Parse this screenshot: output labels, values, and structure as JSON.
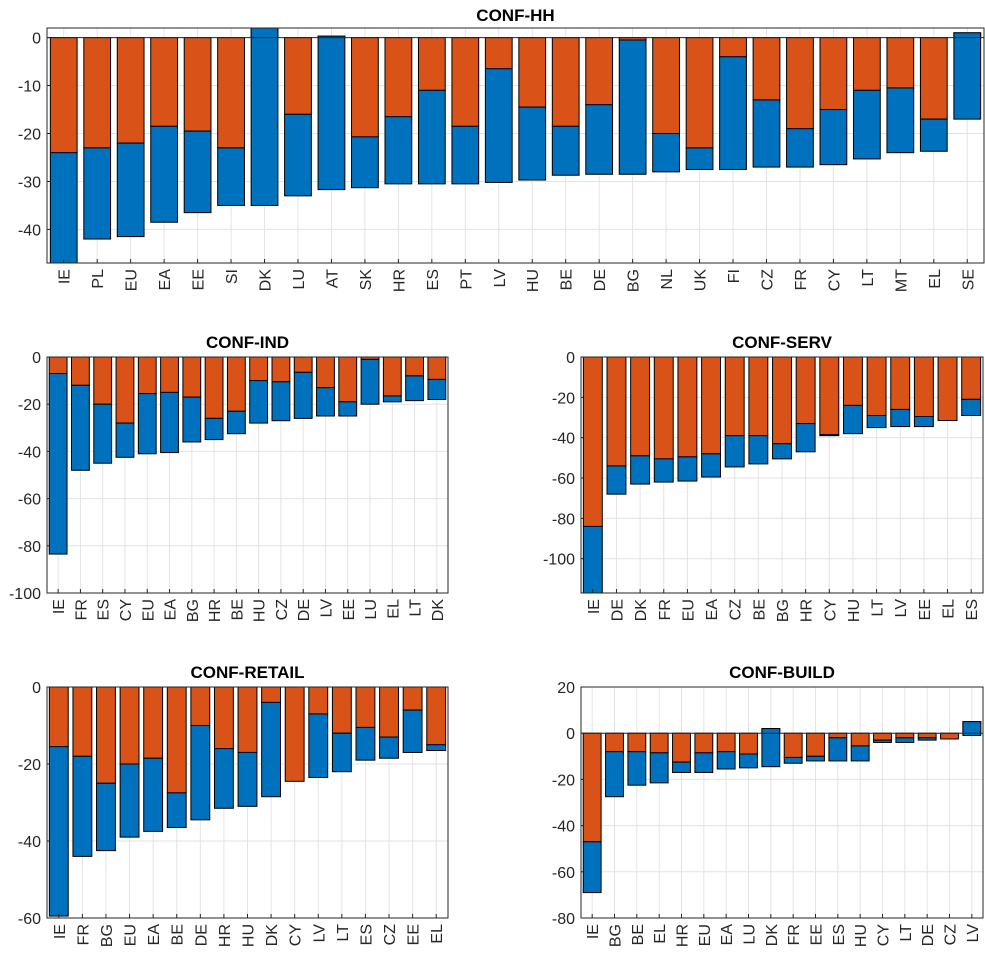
{
  "chart_data": [
    {
      "type": "bar",
      "stacked": true,
      "title": "CONF-HH",
      "grid": true,
      "ylim": [
        -47,
        2
      ],
      "yticks": [
        0,
        -10,
        -20,
        -30,
        -40
      ],
      "categories": [
        "IE",
        "PL",
        "EU",
        "EA",
        "EE",
        "SI",
        "DK",
        "LU",
        "AT",
        "SK",
        "HR",
        "ES",
        "PT",
        "LV",
        "HU",
        "BE",
        "DE",
        "BG",
        "NL",
        "UK",
        "FI",
        "CZ",
        "FR",
        "CY",
        "LT",
        "MT",
        "EL",
        "SE"
      ],
      "series": [
        {
          "color": "#d95319",
          "values": [
            -24,
            -23,
            -22,
            -18.5,
            -19.5,
            -23,
            2.5,
            -16,
            0.3,
            -20.7,
            -16.5,
            -11,
            -18.5,
            -6.5,
            -14.5,
            -18.5,
            -14,
            -0.5,
            -20,
            -23,
            -4,
            -13,
            -19,
            -15,
            -11,
            -10.5,
            -17,
            1
          ]
        },
        {
          "color": "#0072bd",
          "values": [
            -26,
            -19,
            -19.5,
            -20,
            -17,
            -12,
            -37.5,
            -17,
            -32,
            -10.6,
            -14,
            -19.5,
            -12,
            -23.7,
            -15.2,
            -10.2,
            -14.5,
            -28,
            -8,
            -4.5,
            -23.5,
            -14,
            -8,
            -11.5,
            -14.3,
            -13.5,
            -6.7,
            -18
          ]
        }
      ]
    },
    {
      "type": "bar",
      "stacked": true,
      "title": "CONF-IND",
      "grid": true,
      "ylim": [
        -100,
        0
      ],
      "yticks": [
        0,
        -20,
        -40,
        -60,
        -80,
        -100
      ],
      "categories": [
        "IE",
        "FR",
        "ES",
        "CY",
        "EU",
        "EA",
        "BG",
        "HR",
        "BE",
        "HU",
        "CZ",
        "DE",
        "LV",
        "EE",
        "LU",
        "EL",
        "LT",
        "DK"
      ],
      "series": [
        {
          "color": "#d95319",
          "values": [
            -7,
            -12,
            -20,
            -28,
            -15.5,
            -15,
            -17,
            -26,
            -23,
            -10,
            -10.5,
            -6.5,
            -13,
            -19,
            -1,
            -16.5,
            -8,
            -9.5
          ]
        },
        {
          "color": "#0072bd",
          "values": [
            -76.5,
            -36,
            -25,
            -14.5,
            -25.5,
            -25.5,
            -19,
            -9,
            -9.5,
            -18,
            -16.5,
            -19.5,
            -12,
            -6,
            -19,
            -2.5,
            -10.5,
            -8.5
          ]
        }
      ]
    },
    {
      "type": "bar",
      "stacked": true,
      "title": "CONF-SERV",
      "grid": true,
      "ylim": [
        -117,
        0
      ],
      "yticks": [
        0,
        -20,
        -40,
        -60,
        -80,
        -100
      ],
      "categories": [
        "IE",
        "DE",
        "DK",
        "FR",
        "EU",
        "EA",
        "CZ",
        "BE",
        "BG",
        "HR",
        "CY",
        "HU",
        "LT",
        "LV",
        "EE",
        "EL",
        "ES"
      ],
      "series": [
        {
          "color": "#d95319",
          "values": [
            -84,
            -54,
            -49,
            -50.5,
            -49.5,
            -48,
            -39,
            -39,
            -43,
            -33,
            -38.5,
            -24,
            -29,
            -26,
            -29.5,
            -31.5,
            -21
          ]
        },
        {
          "color": "#0072bd",
          "values": [
            -36,
            -14,
            -14,
            -11.5,
            -12,
            -11.5,
            -15.5,
            -14,
            -7.5,
            -14,
            -0.5,
            -14,
            -6,
            -8.5,
            -5,
            0,
            -8
          ]
        }
      ]
    },
    {
      "type": "bar",
      "stacked": true,
      "title": "CONF-RETAIL",
      "grid": true,
      "ylim": [
        -60,
        0
      ],
      "yticks": [
        0,
        -20,
        -40,
        -60
      ],
      "categories": [
        "IE",
        "FR",
        "BG",
        "EU",
        "EA",
        "BE",
        "DE",
        "HR",
        "HU",
        "DK",
        "CY",
        "LV",
        "LT",
        "ES",
        "CZ",
        "EE",
        "EL"
      ],
      "series": [
        {
          "color": "#d95319",
          "values": [
            -15.5,
            -18,
            -25,
            -20,
            -18.5,
            -27.5,
            -10,
            -16,
            -17,
            -4,
            -24.5,
            -7,
            -12,
            -10.5,
            -13,
            -6,
            -15
          ]
        },
        {
          "color": "#0072bd",
          "values": [
            -44,
            -26,
            -17.5,
            -19,
            -19,
            -9,
            -24.5,
            -15.5,
            -14,
            -24.5,
            0,
            -16.5,
            -10,
            -8.5,
            -5.5,
            -11,
            -1.5
          ]
        }
      ]
    },
    {
      "type": "bar",
      "stacked": true,
      "title": "CONF-BUILD",
      "grid": true,
      "ylim": [
        -80,
        20
      ],
      "yticks": [
        20,
        0,
        -20,
        -40,
        -60,
        -80
      ],
      "categories": [
        "IE",
        "BG",
        "BE",
        "EL",
        "HR",
        "EU",
        "EA",
        "LU",
        "DK",
        "FR",
        "EE",
        "ES",
        "HU",
        "CY",
        "LT",
        "DE",
        "CZ",
        "LV"
      ],
      "series": [
        {
          "color": "#d95319",
          "values": [
            -47,
            -8,
            -8,
            -8.5,
            -12.5,
            -8.5,
            -8,
            -9,
            2,
            -10.5,
            -10,
            -2,
            -5.5,
            -3,
            -2,
            -2,
            -2.5,
            5
          ]
        },
        {
          "color": "#0072bd",
          "values": [
            -22,
            -19.5,
            -14.5,
            -13,
            -4.5,
            -8.5,
            -7.5,
            -6,
            -16.5,
            -2.5,
            -2,
            -10,
            -6.5,
            -1,
            -2,
            -1,
            0,
            -6
          ]
        }
      ]
    }
  ]
}
